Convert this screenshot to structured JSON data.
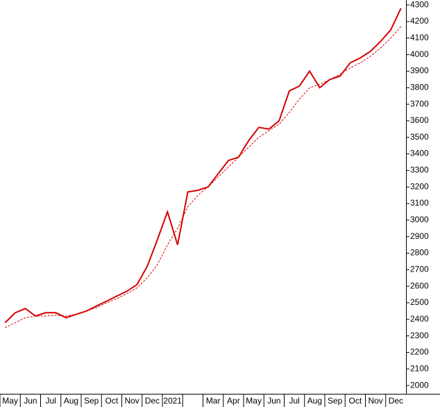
{
  "chart_data": {
    "type": "line",
    "categories": [
      "May",
      null,
      "Jun",
      null,
      "Jul",
      null,
      "Aug",
      null,
      "Sep",
      null,
      "Oct",
      null,
      "Nov",
      null,
      "Dec",
      null,
      "2021",
      null,
      null,
      null,
      "Mar",
      null,
      "Apr",
      null,
      "May",
      null,
      "Jun",
      null,
      "Jul",
      null,
      "Aug",
      null,
      "Sep",
      null,
      "Oct",
      null,
      "Nov",
      null,
      "Dec",
      null
    ],
    "series": [
      {
        "color": "#d40000",
        "dashed": false,
        "values": [
          2380,
          2440,
          2465,
          2420,
          2440,
          2440,
          2410,
          2430,
          2450,
          2480,
          2510,
          2540,
          2570,
          2610,
          2720,
          2880,
          3050,
          2850,
          3170,
          3180,
          3200,
          3280,
          3360,
          3380,
          3480,
          3560,
          3550,
          3600,
          3780,
          3810,
          3900,
          3800,
          3850,
          3870,
          3950,
          3980,
          4020,
          4080,
          4150,
          4280
        ]
      },
      {
        "color": "#d40000",
        "dashed": true,
        "values": [
          2350,
          2380,
          2410,
          2420,
          2420,
          2425,
          2420,
          2430,
          2450,
          2470,
          2500,
          2525,
          2555,
          2590,
          2650,
          2730,
          2850,
          2950,
          3080,
          3150,
          3200,
          3260,
          3320,
          3380,
          3440,
          3500,
          3540,
          3580,
          3650,
          3730,
          3800,
          3820,
          3850,
          3880,
          3920,
          3950,
          3990,
          4040,
          4100,
          4170
        ]
      }
    ],
    "ylim": [
      1950,
      4330
    ],
    "yticks": [
      2000,
      2100,
      2200,
      2300,
      2400,
      2500,
      2600,
      2700,
      2800,
      2900,
      3000,
      3100,
      3200,
      3300,
      3400,
      3500,
      3600,
      3700,
      3800,
      3900,
      4000,
      4100,
      4200,
      4300
    ]
  }
}
